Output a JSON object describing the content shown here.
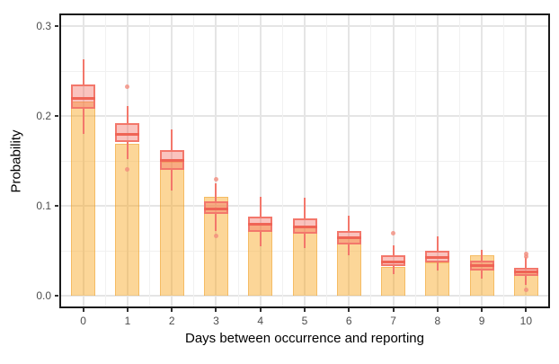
{
  "chart_data": {
    "type": "bar",
    "subtype": "bar-with-boxplot-overlay",
    "title": "",
    "xlabel": "Days between occurrence and reporting",
    "ylabel": "Probability",
    "categories": [
      "0",
      "1",
      "2",
      "3",
      "4",
      "5",
      "6",
      "7",
      "8",
      "9",
      "10"
    ],
    "bar_values": [
      0.216,
      0.169,
      0.149,
      0.11,
      0.079,
      0.077,
      0.065,
      0.032,
      0.037,
      0.045,
      0.026
    ],
    "boxplots": [
      {
        "whisker_low": 0.18,
        "q1": 0.208,
        "median": 0.22,
        "q3": 0.235,
        "whisker_high": 0.263,
        "outliers": []
      },
      {
        "whisker_low": 0.152,
        "q1": 0.171,
        "median": 0.18,
        "q3": 0.192,
        "whisker_high": 0.211,
        "outliers": [
          0.233,
          0.141
        ]
      },
      {
        "whisker_low": 0.117,
        "q1": 0.14,
        "median": 0.151,
        "q3": 0.162,
        "whisker_high": 0.185,
        "outliers": []
      },
      {
        "whisker_low": 0.072,
        "q1": 0.091,
        "median": 0.097,
        "q3": 0.105,
        "whisker_high": 0.125,
        "outliers": [
          0.13,
          0.067
        ]
      },
      {
        "whisker_low": 0.055,
        "q1": 0.071,
        "median": 0.08,
        "q3": 0.088,
        "whisker_high": 0.11,
        "outliers": []
      },
      {
        "whisker_low": 0.053,
        "q1": 0.069,
        "median": 0.077,
        "q3": 0.086,
        "whisker_high": 0.109,
        "outliers": []
      },
      {
        "whisker_low": 0.045,
        "q1": 0.057,
        "median": 0.065,
        "q3": 0.072,
        "whisker_high": 0.089,
        "outliers": []
      },
      {
        "whisker_low": 0.024,
        "q1": 0.033,
        "median": 0.038,
        "q3": 0.045,
        "whisker_high": 0.056,
        "outliers": [
          0.07
        ]
      },
      {
        "whisker_low": 0.028,
        "q1": 0.037,
        "median": 0.043,
        "q3": 0.05,
        "whisker_high": 0.066,
        "outliers": []
      },
      {
        "whisker_low": 0.019,
        "q1": 0.028,
        "median": 0.034,
        "q3": 0.039,
        "whisker_high": 0.051,
        "outliers": []
      },
      {
        "whisker_low": 0.012,
        "q1": 0.022,
        "median": 0.027,
        "q3": 0.031,
        "whisker_high": 0.043,
        "outliers": [
          0.047,
          0.044,
          0.007
        ]
      }
    ],
    "y_tick_labels": [
      "0.0",
      "0.1",
      "0.2",
      "0.3"
    ],
    "y_tick_values": [
      0,
      0.1,
      0.2,
      0.3
    ],
    "y_minor_values": [
      0.05,
      0.15,
      0.25
    ],
    "ylim": [
      -0.012,
      0.312
    ],
    "grid": true,
    "legend_position": "none",
    "colors": {
      "bar_fill": "rgba(249,168,37,0.47)",
      "bar_border": "rgba(234,149,22,0.40)",
      "box_fill": "rgba(242,112,100,0.42)",
      "box_border": "#F3776B",
      "median": "#EF6455",
      "whisker": "#F3776B",
      "outlier": "#F28C7D",
      "grid_major": "#E5E5E5",
      "grid_minor": "#F1F1F1",
      "tick_mark": "#333333",
      "tick_text": "#4D4D4D",
      "axis_title": "#000000",
      "panel_border": "#1a1a1a"
    }
  }
}
